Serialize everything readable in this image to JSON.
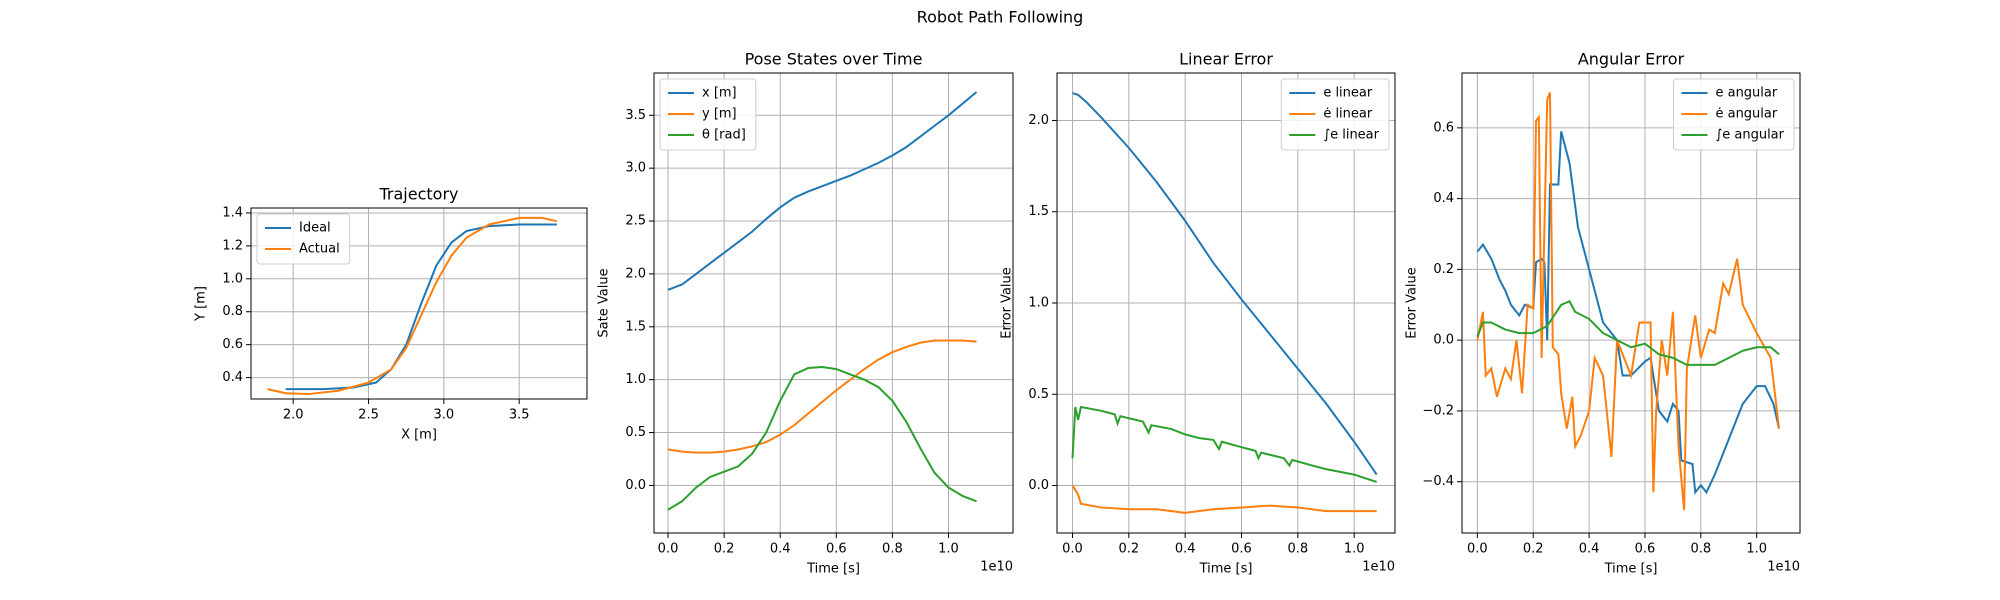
{
  "title": "Robot Path Following",
  "chart_data": [
    {
      "type": "line",
      "title": "Trajectory",
      "xlabel": "X [m]",
      "ylabel": "Y [m]",
      "xlim": [
        1.72,
        3.95
      ],
      "ylim": [
        0.27,
        1.43
      ],
      "xticks": [
        {
          "value": 2,
          "label": "2.0"
        },
        2.5,
        {
          "value": 3,
          "label": "3.0"
        },
        3.5
      ],
      "yticks": [
        0.4,
        0.6,
        0.8,
        {
          "value": 1,
          "label": "1.0"
        },
        1.2,
        1.4
      ],
      "grid": true,
      "legend": "upper left",
      "series": [
        {
          "name": "Ideal",
          "color": "#1f77b4",
          "x": [
            1.95,
            2.2,
            2.4,
            2.55,
            2.65,
            2.75,
            2.85,
            2.95,
            3.05,
            3.15,
            3.3,
            3.5,
            3.75
          ],
          "values": [
            0.33,
            0.33,
            0.34,
            0.37,
            0.45,
            0.6,
            0.85,
            1.08,
            1.22,
            1.29,
            1.32,
            1.33,
            1.33
          ]
        },
        {
          "name": "Actual",
          "color": "#ff7f0e",
          "x": [
            1.83,
            1.95,
            2.1,
            2.3,
            2.5,
            2.65,
            2.75,
            2.85,
            2.95,
            3.05,
            3.15,
            3.3,
            3.5,
            3.65,
            3.75
          ],
          "values": [
            0.33,
            0.305,
            0.3,
            0.32,
            0.37,
            0.45,
            0.58,
            0.78,
            0.98,
            1.14,
            1.25,
            1.33,
            1.37,
            1.37,
            1.35
          ]
        }
      ]
    },
    {
      "type": "line",
      "title": "Pose States over Time",
      "xlabel": "Time [s]",
      "ylabel": "Sate Value",
      "x_offset_label": "1e10",
      "xlim": [
        -0.05,
        1.23
      ],
      "ylim": [
        -0.45,
        3.9
      ],
      "xticks": [
        {
          "value": 0,
          "label": "0.0"
        },
        0.2,
        0.4,
        0.6,
        0.8,
        {
          "value": 1,
          "label": "1.0"
        }
      ],
      "yticks": [
        {
          "value": 0,
          "label": "0.0"
        },
        0.5,
        {
          "value": 1,
          "label": "1.0"
        },
        1.5,
        {
          "value": 2,
          "label": "2.0"
        },
        2.5,
        {
          "value": 3,
          "label": "3.0"
        },
        3.5
      ],
      "grid": true,
      "legend": "upper left",
      "series": [
        {
          "name": "x [m]",
          "color": "#1f77b4",
          "x": [
            0,
            0.05,
            0.1,
            0.15,
            0.2,
            0.25,
            0.3,
            0.35,
            0.4,
            0.45,
            0.5,
            0.55,
            0.6,
            0.65,
            0.7,
            0.75,
            0.8,
            0.85,
            0.9,
            0.95,
            1,
            1.05,
            1.1
          ],
          "values": [
            1.85,
            1.9,
            2.0,
            2.1,
            2.2,
            2.3,
            2.4,
            2.52,
            2.63,
            2.72,
            2.78,
            2.83,
            2.88,
            2.93,
            2.99,
            3.05,
            3.12,
            3.2,
            3.3,
            3.4,
            3.5,
            3.61,
            3.72
          ]
        },
        {
          "name": "y [m]",
          "color": "#ff7f0e",
          "x": [
            0,
            0.05,
            0.1,
            0.15,
            0.2,
            0.25,
            0.3,
            0.35,
            0.4,
            0.45,
            0.5,
            0.55,
            0.6,
            0.65,
            0.7,
            0.75,
            0.8,
            0.85,
            0.9,
            0.95,
            1,
            1.05,
            1.1
          ],
          "values": [
            0.34,
            0.32,
            0.31,
            0.31,
            0.32,
            0.34,
            0.37,
            0.41,
            0.48,
            0.57,
            0.68,
            0.79,
            0.9,
            1.0,
            1.1,
            1.19,
            1.26,
            1.31,
            1.35,
            1.37,
            1.37,
            1.37,
            1.36
          ]
        },
        {
          "name": "θ [rad]",
          "color": "#2ca02c",
          "x": [
            0,
            0.05,
            0.1,
            0.15,
            0.2,
            0.25,
            0.3,
            0.35,
            0.4,
            0.45,
            0.5,
            0.55,
            0.6,
            0.65,
            0.7,
            0.75,
            0.8,
            0.85,
            0.9,
            0.95,
            1,
            1.05,
            1.1
          ],
          "values": [
            -0.23,
            -0.15,
            -0.02,
            0.08,
            0.13,
            0.18,
            0.3,
            0.5,
            0.8,
            1.05,
            1.11,
            1.12,
            1.1,
            1.05,
            1.0,
            0.93,
            0.8,
            0.6,
            0.35,
            0.12,
            -0.02,
            -0.1,
            -0.15
          ]
        }
      ]
    },
    {
      "type": "line",
      "title": "Linear Error",
      "xlabel": "Time [s]",
      "ylabel": "Error Value",
      "x_offset_label": "1e10",
      "xlim": [
        -0.055,
        1.145
      ],
      "ylim": [
        -0.26,
        2.26
      ],
      "xticks": [
        {
          "value": 0,
          "label": "0.0"
        },
        0.2,
        0.4,
        0.6,
        0.8,
        {
          "value": 1,
          "label": "1.0"
        }
      ],
      "yticks": [
        {
          "value": 0,
          "label": "0.0"
        },
        0.5,
        {
          "value": 1,
          "label": "1.0"
        },
        1.5,
        {
          "value": 2,
          "label": "2.0"
        }
      ],
      "grid": true,
      "legend": "upper right",
      "series": [
        {
          "name": "e linear",
          "color": "#1f77b4",
          "x": [
            0,
            0.02,
            0.05,
            0.1,
            0.2,
            0.3,
            0.4,
            0.5,
            0.6,
            0.7,
            0.8,
            0.9,
            1,
            1.08
          ],
          "values": [
            2.15,
            2.14,
            2.1,
            2.02,
            1.85,
            1.66,
            1.45,
            1.22,
            1.02,
            0.83,
            0.64,
            0.45,
            0.24,
            0.06
          ]
        },
        {
          "name": "ė linear",
          "color": "#ff7f0e",
          "x": [
            0,
            0.02,
            0.03,
            0.1,
            0.2,
            0.3,
            0.4,
            0.5,
            0.6,
            0.7,
            0.8,
            0.9,
            1.08
          ],
          "values": [
            0.0,
            -0.05,
            -0.1,
            -0.12,
            -0.13,
            -0.13,
            -0.15,
            -0.13,
            -0.12,
            -0.11,
            -0.12,
            -0.14,
            -0.14
          ]
        },
        {
          "name": "∫e linear",
          "color": "#2ca02c",
          "x": [
            0,
            0.01,
            0.02,
            0.03,
            0.1,
            0.15,
            0.16,
            0.17,
            0.25,
            0.27,
            0.28,
            0.35,
            0.4,
            0.45,
            0.5,
            0.52,
            0.53,
            0.6,
            0.65,
            0.66,
            0.67,
            0.75,
            0.77,
            0.78,
            0.85,
            0.9,
            1,
            1.08
          ],
          "values": [
            0.15,
            0.43,
            0.36,
            0.43,
            0.41,
            0.39,
            0.34,
            0.38,
            0.35,
            0.29,
            0.33,
            0.31,
            0.28,
            0.26,
            0.25,
            0.2,
            0.24,
            0.21,
            0.19,
            0.15,
            0.18,
            0.15,
            0.11,
            0.14,
            0.11,
            0.09,
            0.06,
            0.02
          ]
        }
      ]
    },
    {
      "type": "line",
      "title": "Angular Error",
      "xlabel": "Time [s]",
      "ylabel": "Error Value",
      "x_offset_label": "1e10",
      "xlim": [
        -0.055,
        1.155
      ],
      "ylim": [
        -0.545,
        0.755
      ],
      "xticks": [
        {
          "value": 0,
          "label": "0.0"
        },
        0.2,
        0.4,
        0.6,
        0.8,
        {
          "value": 1,
          "label": "1.0"
        }
      ],
      "yticks": [
        {
          "value": -0.4,
          "label": "−0.4"
        },
        {
          "value": -0.2,
          "label": "−0.2"
        },
        {
          "value": 0,
          "label": "0.0"
        },
        0.2,
        0.4,
        0.6
      ],
      "grid": true,
      "legend": "upper right",
      "series": [
        {
          "name": "e angular",
          "color": "#1f77b4",
          "x": [
            0,
            0.02,
            0.05,
            0.08,
            0.1,
            0.12,
            0.15,
            0.17,
            0.2,
            0.21,
            0.23,
            0.24,
            0.25,
            0.26,
            0.29,
            0.3,
            0.33,
            0.36,
            0.4,
            0.45,
            0.5,
            0.52,
            0.55,
            0.6,
            0.62,
            0.65,
            0.68,
            0.7,
            0.72,
            0.73,
            0.77,
            0.78,
            0.8,
            0.82,
            0.85,
            0.9,
            0.95,
            1,
            1.03,
            1.06,
            1.08
          ],
          "values": [
            0.25,
            0.27,
            0.23,
            0.17,
            0.14,
            0.1,
            0.07,
            0.1,
            0.09,
            0.22,
            0.23,
            0.22,
            0.0,
            0.44,
            0.44,
            0.59,
            0.5,
            0.32,
            0.2,
            0.05,
            0.0,
            -0.1,
            -0.1,
            -0.06,
            -0.05,
            -0.2,
            -0.23,
            -0.18,
            -0.2,
            -0.34,
            -0.35,
            -0.43,
            -0.41,
            -0.43,
            -0.38,
            -0.28,
            -0.18,
            -0.13,
            -0.13,
            -0.18,
            -0.25
          ]
        },
        {
          "name": "ė angular",
          "color": "#ff7f0e",
          "x": [
            0,
            0.02,
            0.03,
            0.05,
            0.07,
            0.1,
            0.12,
            0.14,
            0.16,
            0.18,
            0.2,
            0.21,
            0.22,
            0.23,
            0.25,
            0.26,
            0.27,
            0.29,
            0.3,
            0.32,
            0.34,
            0.35,
            0.37,
            0.4,
            0.42,
            0.45,
            0.48,
            0.5,
            0.55,
            0.58,
            0.62,
            0.63,
            0.64,
            0.66,
            0.68,
            0.7,
            0.72,
            0.74,
            0.75,
            0.78,
            0.8,
            0.83,
            0.85,
            0.88,
            0.9,
            0.93,
            0.95,
            1,
            1.05,
            1.08
          ],
          "values": [
            0.0,
            0.08,
            -0.1,
            -0.08,
            -0.16,
            -0.08,
            -0.11,
            0.0,
            -0.15,
            0.1,
            0.09,
            0.62,
            0.63,
            -0.05,
            0.68,
            0.7,
            -0.02,
            -0.04,
            -0.15,
            -0.25,
            -0.16,
            -0.3,
            -0.27,
            -0.2,
            -0.05,
            -0.1,
            -0.33,
            0.0,
            -0.1,
            0.05,
            0.05,
            -0.43,
            -0.2,
            0.0,
            -0.1,
            0.08,
            -0.3,
            -0.48,
            -0.08,
            0.07,
            -0.05,
            0.03,
            0.02,
            0.16,
            0.13,
            0.23,
            0.1,
            0.02,
            -0.05,
            -0.25
          ]
        },
        {
          "name": "∫e angular",
          "color": "#2ca02c",
          "x": [
            0,
            0.02,
            0.05,
            0.1,
            0.15,
            0.2,
            0.25,
            0.3,
            0.33,
            0.35,
            0.4,
            0.45,
            0.5,
            0.55,
            0.6,
            0.65,
            0.7,
            0.75,
            0.8,
            0.85,
            0.9,
            0.95,
            1,
            1.05,
            1.08
          ],
          "values": [
            0.01,
            0.05,
            0.05,
            0.03,
            0.02,
            0.02,
            0.04,
            0.1,
            0.11,
            0.08,
            0.06,
            0.02,
            0.0,
            -0.02,
            -0.01,
            -0.04,
            -0.05,
            -0.07,
            -0.07,
            -0.07,
            -0.05,
            -0.03,
            -0.02,
            -0.02,
            -0.04
          ]
        }
      ]
    }
  ]
}
